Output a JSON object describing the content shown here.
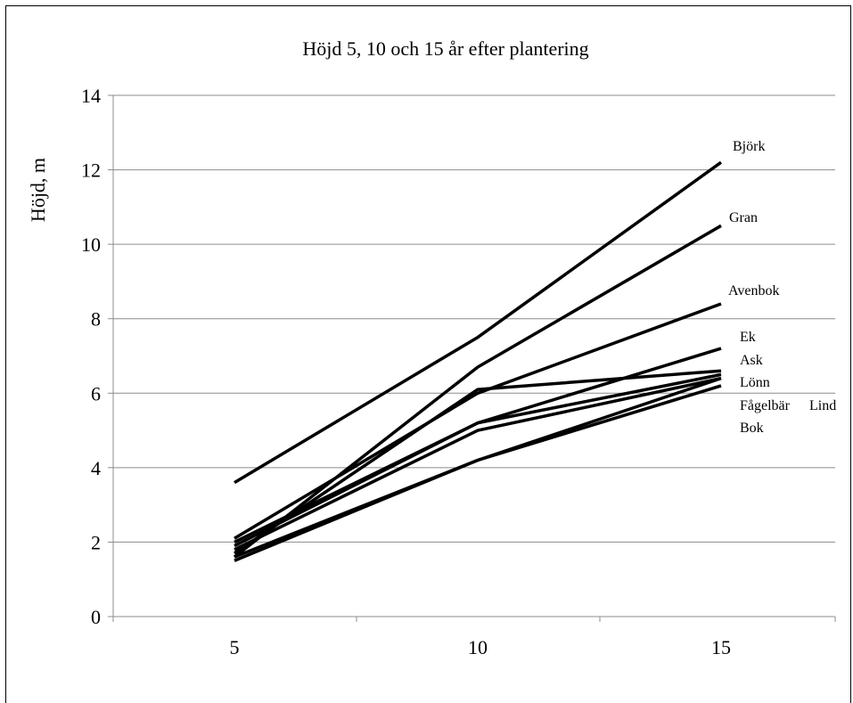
{
  "chart_data": {
    "type": "line",
    "title": "Höjd 5, 10 och 15 år efter plantering",
    "xlabel": "",
    "ylabel": "Höjd, m",
    "categories": [
      "5",
      "10",
      "15"
    ],
    "ylim": [
      0,
      14
    ],
    "yticks": [
      "0",
      "2",
      "4",
      "6",
      "8",
      "10",
      "12",
      "14"
    ],
    "grid": true,
    "legend": "series labels at line ends (right)",
    "series": [
      {
        "name": "Björk",
        "values": [
          3.6,
          7.5,
          12.2
        ]
      },
      {
        "name": "Gran",
        "values": [
          1.6,
          6.7,
          10.5
        ]
      },
      {
        "name": "Avenbok",
        "values": [
          2.1,
          6.0,
          8.4
        ]
      },
      {
        "name": "Ek",
        "values": [
          1.9,
          5.2,
          7.2
        ]
      },
      {
        "name": "Ask",
        "values": [
          1.7,
          6.1,
          6.6
        ]
      },
      {
        "name": "Lönn",
        "values": [
          2.0,
          5.2,
          6.5
        ]
      },
      {
        "name": "Fågelbär",
        "values": [
          1.5,
          4.2,
          6.4
        ]
      },
      {
        "name": "Lind",
        "values": [
          1.8,
          5.0,
          6.4
        ]
      },
      {
        "name": "Bok",
        "values": [
          1.6,
          4.2,
          6.2
        ]
      }
    ],
    "colors": {
      "lines": "#000000",
      "grid": "#8c8c8c"
    }
  }
}
